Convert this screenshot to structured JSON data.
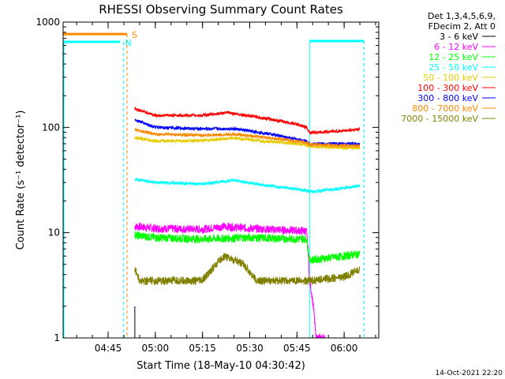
{
  "chart_data": {
    "type": "line",
    "title": "RHESSI Observing Summary Count Rates",
    "xlabel": "Start Time (18-May-10 04:30:42)",
    "ylabel": "Count Rate (s⁻¹ detector⁻¹)",
    "y_scale": "log",
    "ylim": [
      1,
      1000
    ],
    "xlim": [
      "04:30:42",
      "06:11:00"
    ],
    "x_ticks": [
      "04:45",
      "05:00",
      "05:15",
      "05:30",
      "05:45",
      "06:00"
    ],
    "y_ticks": [
      "1",
      "10",
      "100",
      "1000"
    ],
    "legend_title": [
      "Det 1,3,4,5,6,9,",
      "FDecim 2, Att 0"
    ],
    "legend_placement": "right",
    "series": [
      {
        "name": "3 - 6 keV",
        "color": "#000000",
        "x": [
          "04:53:30",
          "04:53:31"
        ],
        "y": [
          1.0,
          2.0
        ]
      },
      {
        "name": "6 - 12 keV",
        "color": "#ff00ff",
        "x": [
          "04:53:30",
          "05:00",
          "05:15",
          "05:22",
          "05:30",
          "05:45",
          "05:48",
          "05:49",
          "05:51",
          "05:54"
        ],
        "y": [
          11.5,
          11.0,
          10.8,
          11.5,
          11.0,
          10.5,
          10.4,
          3.5,
          1.0,
          1.0
        ]
      },
      {
        "name": "12 - 25 keV",
        "color": "#00ff00",
        "x": [
          "04:53:30",
          "05:00",
          "05:15",
          "05:30",
          "05:45",
          "05:48",
          "05:49",
          "06:00",
          "06:05"
        ],
        "y": [
          9.5,
          9.0,
          8.7,
          9.0,
          8.7,
          8.8,
          5.5,
          6.0,
          6.3
        ]
      },
      {
        "name": "25 - 50 keV",
        "color": "#00ffff",
        "x": [
          "04:53:30",
          "05:00",
          "05:15",
          "05:25",
          "05:35",
          "05:45",
          "05:50",
          "06:00",
          "06:05"
        ],
        "y": [
          32,
          30,
          29,
          31.5,
          28,
          26,
          24.5,
          26.5,
          28
        ]
      },
      {
        "name": "50 - 100 keV",
        "color": "#e6cc00",
        "x": [
          "04:53:30",
          "05:00",
          "05:15",
          "05:25",
          "05:35",
          "05:45",
          "05:48",
          "05:49",
          "06:00",
          "06:05"
        ],
        "y": [
          80,
          74,
          75,
          79,
          74,
          70,
          68,
          66,
          64,
          64
        ]
      },
      {
        "name": "100 - 300 keV",
        "color": "#ff0000",
        "x": [
          "04:53:30",
          "05:00",
          "05:15",
          "05:23",
          "05:35",
          "05:45",
          "05:48",
          "05:49",
          "06:00",
          "06:05"
        ],
        "y": [
          150,
          130,
          130,
          138,
          122,
          107,
          100,
          89,
          93,
          96
        ]
      },
      {
        "name": "300 - 800 keV",
        "color": "#0000ff",
        "x": [
          "04:53:30",
          "05:00",
          "05:15",
          "05:25",
          "05:35",
          "05:45",
          "05:48",
          "05:49",
          "06:00",
          "06:05"
        ],
        "y": [
          118,
          100,
          97,
          97,
          88,
          77,
          74,
          70,
          70,
          70
        ]
      },
      {
        "name": "800 - 7000 keV",
        "color": "#ff8800",
        "x": [
          "04:53:30",
          "05:00",
          "05:15",
          "05:25",
          "05:35",
          "05:45",
          "05:48",
          "05:49",
          "06:00",
          "06:05"
        ],
        "y": [
          95,
          86,
          84,
          86,
          80,
          74,
          72,
          69,
          67,
          67
        ]
      },
      {
        "name": "7000 - 15000 keV",
        "color": "#808000",
        "x": [
          "04:53:30",
          "04:55",
          "05:05",
          "05:10",
          "05:15",
          "05:18",
          "05:22",
          "05:28",
          "05:32",
          "05:38",
          "05:45",
          "05:48",
          "05:49",
          "06:00",
          "06:05"
        ],
        "y": [
          4.5,
          3.5,
          3.5,
          3.5,
          3.5,
          4.5,
          6.0,
          5.0,
          3.5,
          3.5,
          3.5,
          3.5,
          3.5,
          3.8,
          4.5
        ]
      }
    ],
    "annotations": [
      {
        "label": "S",
        "color": "#ff8800",
        "x": [
          "04:30:42",
          "04:51:00"
        ],
        "y": 770,
        "marker_x": "04:51:00"
      },
      {
        "label": "N",
        "color": "#00ffff",
        "x": [
          "04:30:42",
          "04:48:50"
        ],
        "y": 650,
        "marker_x": "04:49:50"
      },
      {
        "label": "",
        "color": "#00ffff",
        "x": [
          "05:49:00",
          "06:06:20"
        ],
        "y": 660,
        "marker_x": "06:06:20"
      }
    ],
    "grid": false
  },
  "footer": {
    "date": "14-Oct-2021 22:20"
  }
}
